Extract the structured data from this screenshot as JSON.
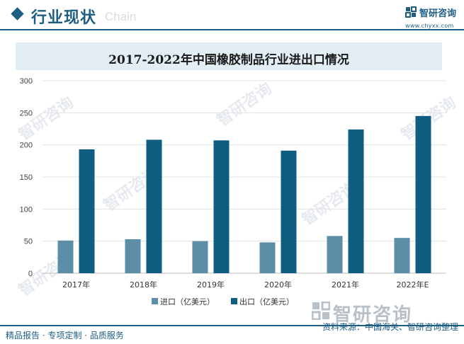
{
  "header": {
    "title": "行业现状",
    "watermark_text": "Chain",
    "logo_name": "智研咨询",
    "logo_url": "www.chyxx.com"
  },
  "chart_data": {
    "type": "bar",
    "title": "2017-2022年中国橡胶制品行业进出口情况",
    "categories": [
      "2017年",
      "2018年",
      "2019年",
      "2020年",
      "2021年",
      "2022年E"
    ],
    "series": [
      {
        "name": "进口（亿美元）",
        "color": "#5d8ea8",
        "values": [
          51,
          53,
          50,
          48,
          58,
          55
        ]
      },
      {
        "name": "出口（亿美元）",
        "color": "#0f5d80",
        "values": [
          193,
          208,
          207,
          191,
          224,
          245
        ]
      }
    ],
    "ylim": [
      0,
      300
    ],
    "yticks": [
      0,
      50,
      100,
      150,
      200,
      250,
      300
    ],
    "xlabel": "",
    "ylabel": "",
    "grid": true,
    "legend_position": "bottom"
  },
  "brand_watermark": "智研咨询",
  "footer": {
    "left": "精品报告 · 专项定制 · 品质服务",
    "source": "资料来源：中国海关、智研咨询整理"
  },
  "watermarks": [
    "智研咨询",
    "智研咨询",
    "智研咨询",
    "智研咨询",
    "智研咨询",
    "智研咨询"
  ]
}
